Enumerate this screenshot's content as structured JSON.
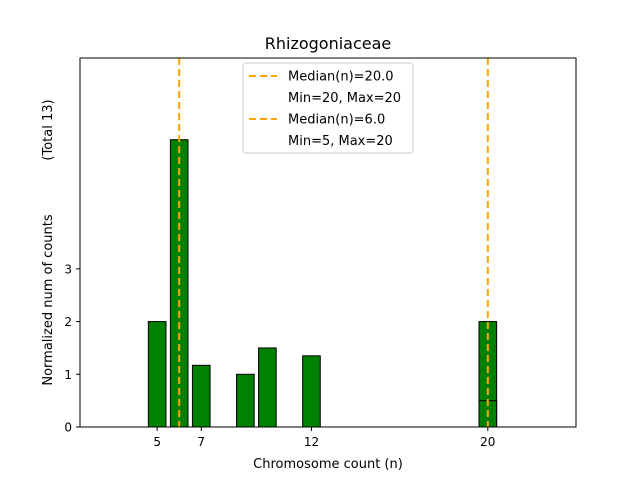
{
  "chart_data": {
    "type": "bar",
    "title": "Rhizogoniaceae",
    "xlabel": "Chromosome count (n)",
    "ylabel": "Normalized num of counts",
    "ylabel_note": "(Total 13)",
    "xlim": [
      1.5,
      24
    ],
    "ylim": [
      0,
      7
    ],
    "x_ticks": [
      5,
      7,
      12,
      20
    ],
    "y_ticks": [
      0,
      1,
      2,
      3
    ],
    "grid": false,
    "bar_width": 0.8,
    "bar_color": "#008000",
    "edge_color": "#000000",
    "bars": [
      {
        "x": 5,
        "value": 2.0
      },
      {
        "x": 6,
        "value": 5.45
      },
      {
        "x": 7,
        "value": 1.17
      },
      {
        "x": 9,
        "value": 1.0
      },
      {
        "x": 10,
        "value": 1.5
      },
      {
        "x": 12,
        "value": 1.35
      },
      {
        "x": 20,
        "value": 2.0
      },
      {
        "x": 20,
        "value": 0.5
      }
    ],
    "median_lines": [
      {
        "x": 20,
        "color": "#ffa500"
      },
      {
        "x": 6,
        "color": "#ffa500"
      }
    ],
    "legend": {
      "position": "top-center",
      "entries": [
        {
          "label": "Median(n)=20.0",
          "line": true
        },
        {
          "label": "Min=20, Max=20",
          "line": false
        },
        {
          "label": "Median(n)=6.0",
          "line": true
        },
        {
          "label": "Min=5, Max=20",
          "line": false
        }
      ]
    }
  }
}
